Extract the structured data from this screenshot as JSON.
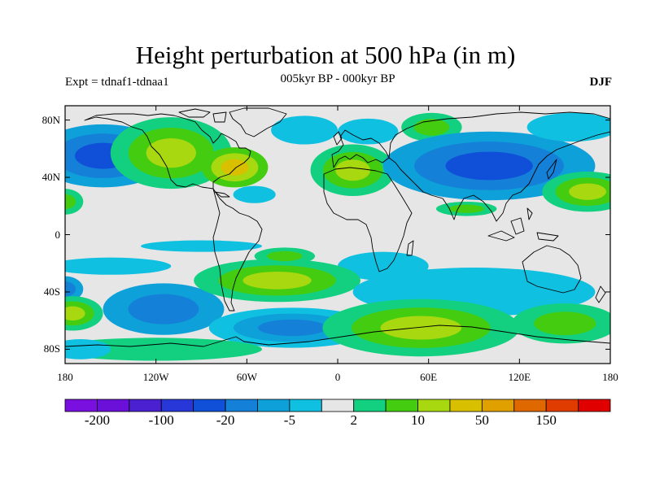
{
  "title": "Height perturbation at 500 hPa (in m)",
  "subtitle": "005kyr BP - 000kyr BP",
  "left_label": "Expt = tdnaf1-tdnaa1",
  "right_label": "DJF",
  "map": {
    "lon_range": [
      -180,
      180
    ],
    "lat_range": [
      -90,
      90
    ],
    "background_color": "#e6e6e6",
    "lat_ticks": [
      {
        "lat": 80,
        "label": "80N"
      },
      {
        "lat": 40,
        "label": "40N"
      },
      {
        "lat": 0,
        "label": "0"
      },
      {
        "lat": -40,
        "label": "40S"
      },
      {
        "lat": -80,
        "label": "80S"
      }
    ],
    "lon_ticks": [
      {
        "lon": -180,
        "label": "180"
      },
      {
        "lon": -120,
        "label": "120W"
      },
      {
        "lon": -60,
        "label": "60W"
      },
      {
        "lon": 0,
        "label": "0"
      },
      {
        "lon": 60,
        "label": "60E"
      },
      {
        "lon": 120,
        "label": "120E"
      },
      {
        "lon": 180,
        "label": "180"
      }
    ]
  },
  "colorbar": {
    "colors": [
      "#7a10e0",
      "#6a10d8",
      "#4a20d0",
      "#2838d8",
      "#1050d8",
      "#1480d8",
      "#0ea0d8",
      "#10c0e0",
      "#e6e6e6",
      "#12d080",
      "#44cc10",
      "#a8d810",
      "#d8c000",
      "#e0a000",
      "#e06800",
      "#e03c00",
      "#e00000"
    ],
    "labels": [
      {
        "index": 1,
        "text": "-200"
      },
      {
        "index": 3,
        "text": "-100"
      },
      {
        "index": 5,
        "text": "-20"
      },
      {
        "index": 7,
        "text": "-5"
      },
      {
        "index": 9,
        "text": "2"
      },
      {
        "index": 11,
        "text": "10"
      },
      {
        "index": 13,
        "text": "50"
      },
      {
        "index": 15,
        "text": "150"
      }
    ]
  },
  "blobs": [
    {
      "lon": -155,
      "lat": 55,
      "rx": 45,
      "ry": 22,
      "levels": [
        6,
        5,
        4
      ]
    },
    {
      "lon": -180,
      "lat": 23,
      "rx": 12,
      "ry": 9,
      "levels": [
        9,
        10
      ]
    },
    {
      "lon": -110,
      "lat": 57,
      "rx": 40,
      "ry": 25,
      "levels": [
        9,
        10,
        11
      ]
    },
    {
      "lon": -68,
      "lat": 47,
      "rx": 22,
      "ry": 14,
      "levels": [
        10,
        11,
        12
      ]
    },
    {
      "lon": -22,
      "lat": 73,
      "rx": 22,
      "ry": 10,
      "levels": [
        7
      ]
    },
    {
      "lon": -55,
      "lat": 28,
      "rx": 14,
      "ry": 6,
      "levels": [
        7
      ]
    },
    {
      "lon": 10,
      "lat": 45,
      "rx": 28,
      "ry": 18,
      "levels": [
        9,
        10,
        11
      ]
    },
    {
      "lon": 20,
      "lat": 72,
      "rx": 20,
      "ry": 9,
      "levels": [
        7
      ]
    },
    {
      "lon": 62,
      "lat": 75,
      "rx": 20,
      "ry": 10,
      "levels": [
        9,
        10
      ]
    },
    {
      "lon": 100,
      "lat": 48,
      "rx": 70,
      "ry": 24,
      "levels": [
        6,
        5,
        4
      ]
    },
    {
      "lon": 155,
      "lat": 75,
      "rx": 30,
      "ry": 10,
      "levels": [
        7
      ]
    },
    {
      "lon": 165,
      "lat": 30,
      "rx": 30,
      "ry": 14,
      "levels": [
        9,
        10,
        11
      ]
    },
    {
      "lon": 85,
      "lat": 18,
      "rx": 20,
      "ry": 5,
      "levels": [
        9,
        10
      ]
    },
    {
      "lon": 30,
      "lat": -22,
      "rx": 30,
      "ry": 10,
      "levels": [
        7
      ]
    },
    {
      "lon": -180,
      "lat": -38,
      "rx": 12,
      "ry": 9,
      "levels": [
        6,
        5
      ]
    },
    {
      "lon": -175,
      "lat": -55,
      "rx": 20,
      "ry": 12,
      "levels": [
        9,
        10,
        11
      ]
    },
    {
      "lon": -115,
      "lat": -52,
      "rx": 40,
      "ry": 18,
      "levels": [
        6,
        5
      ]
    },
    {
      "lon": -40,
      "lat": -32,
      "rx": 55,
      "ry": 15,
      "levels": [
        9,
        10,
        11
      ]
    },
    {
      "lon": -35,
      "lat": -15,
      "rx": 20,
      "ry": 6,
      "levels": [
        9,
        10
      ]
    },
    {
      "lon": -30,
      "lat": -65,
      "rx": 55,
      "ry": 14,
      "levels": [
        7,
        6,
        5
      ]
    },
    {
      "lon": -150,
      "lat": -22,
      "rx": 40,
      "ry": 6,
      "levels": [
        7
      ]
    },
    {
      "lon": 90,
      "lat": -40,
      "rx": 80,
      "ry": 17,
      "levels": [
        7
      ]
    },
    {
      "lon": 55,
      "lat": -65,
      "rx": 65,
      "ry": 20,
      "levels": [
        9,
        10,
        11
      ]
    },
    {
      "lon": 150,
      "lat": -62,
      "rx": 35,
      "ry": 14,
      "levels": [
        9,
        10
      ]
    },
    {
      "lon": -120,
      "lat": -80,
      "rx": 70,
      "ry": 8,
      "levels": [
        9
      ]
    },
    {
      "lon": -170,
      "lat": -80,
      "rx": 20,
      "ry": 7,
      "levels": [
        7
      ]
    },
    {
      "lon": -90,
      "lat": -8,
      "rx": 40,
      "ry": 4,
      "levels": [
        7
      ]
    }
  ]
}
